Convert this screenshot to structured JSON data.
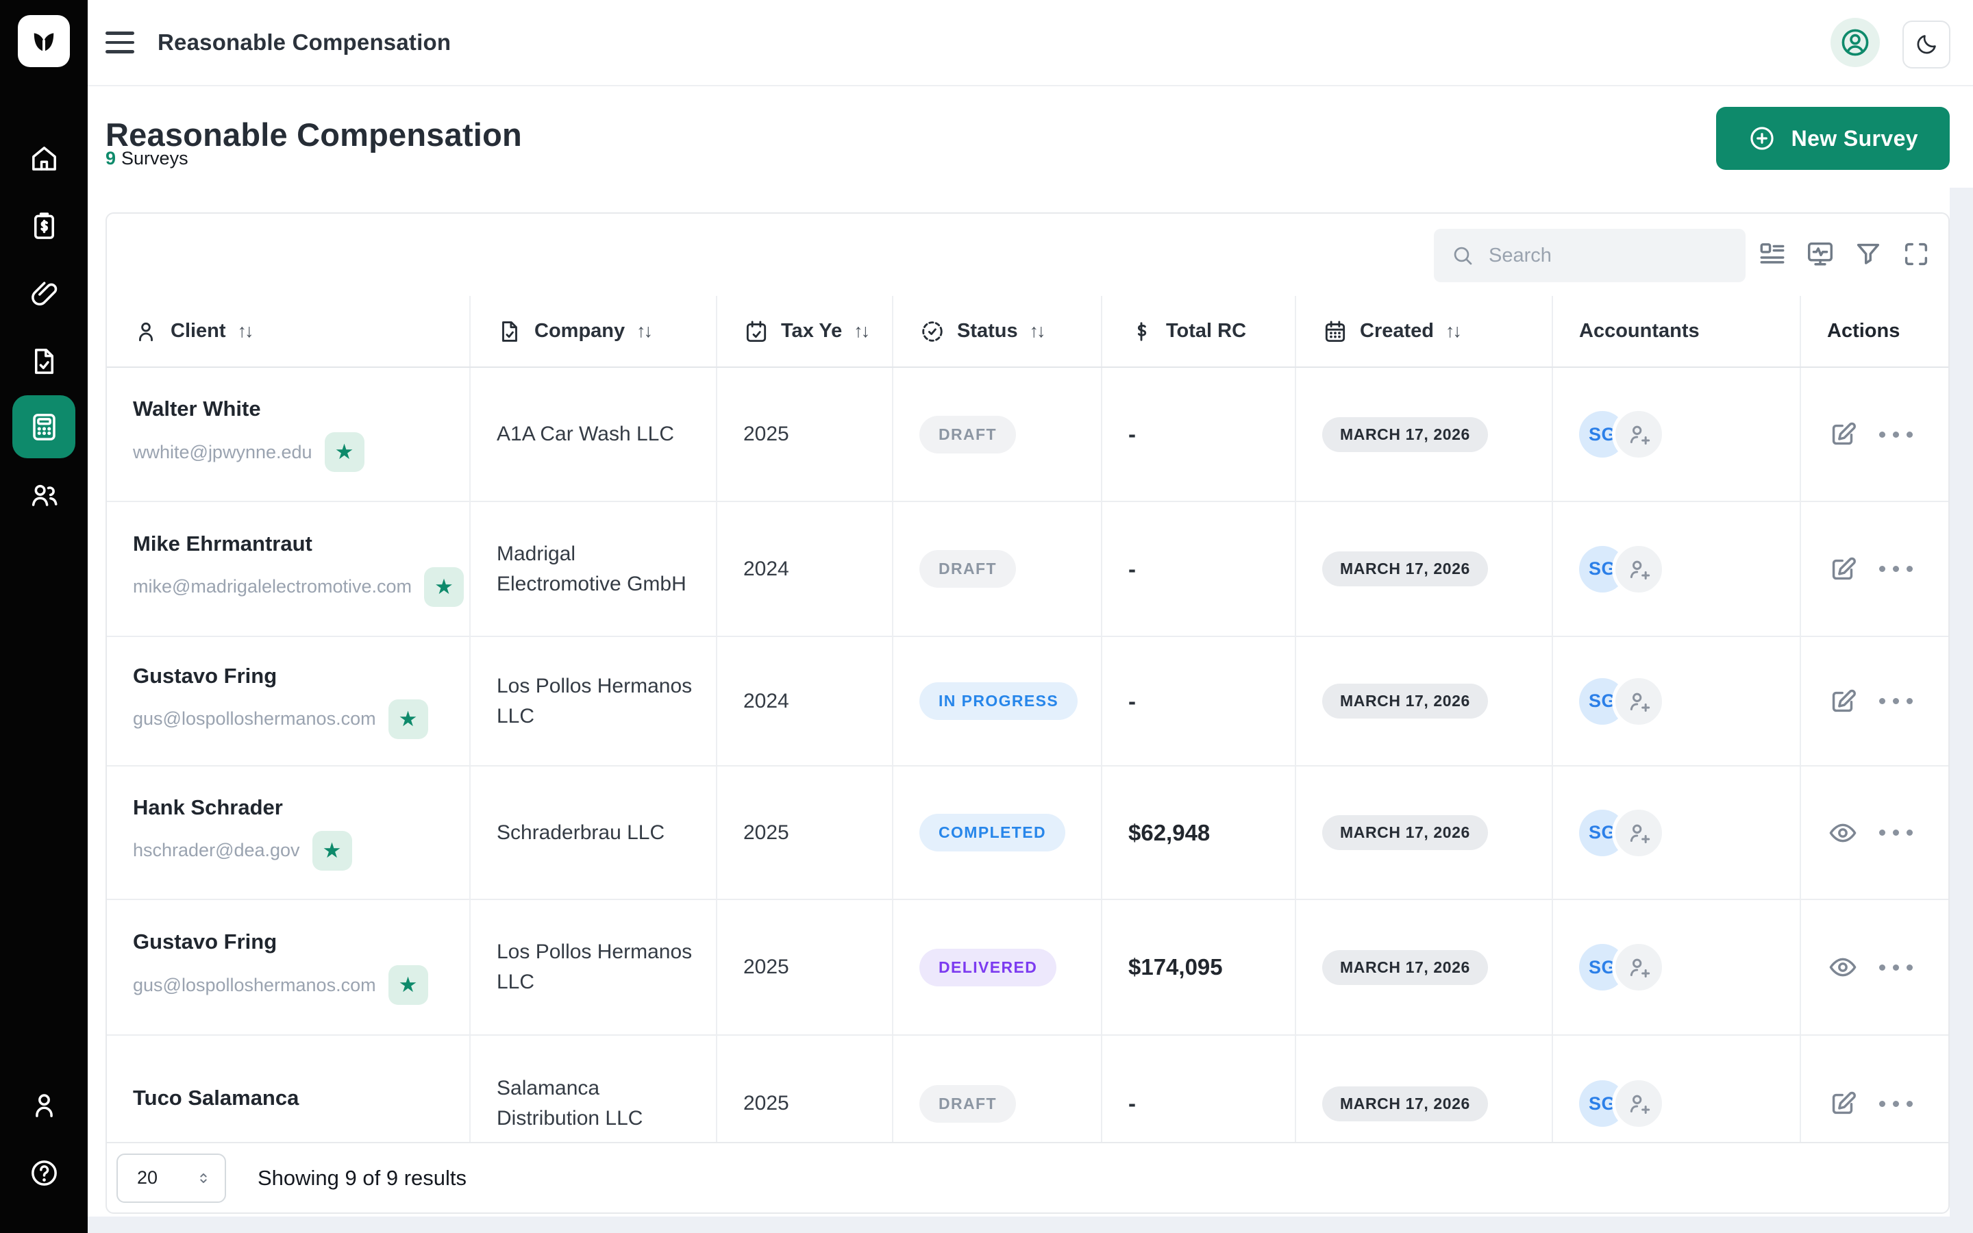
{
  "topbar": {
    "title": "Reasonable Compensation"
  },
  "sidebar": {
    "items": [
      {
        "icon": "home-icon",
        "active": false
      },
      {
        "icon": "clipboard-dollar-icon",
        "active": false
      },
      {
        "icon": "paperclip-icon",
        "active": false
      },
      {
        "icon": "file-check-icon",
        "active": false
      },
      {
        "icon": "calculator-icon",
        "active": true
      },
      {
        "icon": "users-icon",
        "active": false
      }
    ],
    "bottom_items": [
      {
        "icon": "user-icon",
        "active": false
      },
      {
        "icon": "help-circle-icon",
        "active": false
      }
    ]
  },
  "page": {
    "title": "Reasonable Compensation",
    "surveys_count": "9",
    "surveys_label": "Surveys",
    "new_survey_label": "New Survey"
  },
  "toolbar": {
    "search_placeholder": "Search",
    "icons": [
      "table-settings-icon",
      "monitor-pulse-icon",
      "filter-icon",
      "fullscreen-icon"
    ]
  },
  "table": {
    "columns": [
      {
        "label": "Client",
        "icon": "user-icon",
        "sortable": true
      },
      {
        "label": "Company",
        "icon": "file-check-icon",
        "sortable": true
      },
      {
        "label": "Tax Ye",
        "icon": "calendar-check-icon",
        "sortable": true
      },
      {
        "label": "Status",
        "icon": "status-circle-icon",
        "sortable": true
      },
      {
        "label": "Total RC",
        "icon": "dollar-icon",
        "sortable": false
      },
      {
        "label": "Created",
        "icon": "calendar-icon",
        "sortable": true
      },
      {
        "label": "Accountants",
        "icon": null,
        "sortable": false
      },
      {
        "label": "Actions",
        "icon": null,
        "sortable": false
      }
    ],
    "sort_glyph": "↑↓",
    "statuses": {
      "DRAFT": {
        "bg": "#f1f2f4",
        "fg": "#8c96a3"
      },
      "IN PROGRESS": {
        "bg": "#e4f0fc",
        "fg": "#2786ea"
      },
      "COMPLETED": {
        "bg": "#e4f0fc",
        "fg": "#2786ea"
      },
      "DELIVERED": {
        "bg": "#ede8fc",
        "fg": "#7c3bf0"
      }
    },
    "rows": [
      {
        "client": "Walter White",
        "email": "wwhite@jpwynne.edu",
        "starred": true,
        "company": "A1A Car Wash LLC",
        "tax_year": "2025",
        "status": "DRAFT",
        "total_rc": "-",
        "created": "MARCH 17, 2026",
        "accountants": [
          "SG"
        ],
        "action": "edit"
      },
      {
        "client": "Mike Ehrmantraut",
        "email": "mike@madrigalelectromotive.com",
        "starred": true,
        "company": "Madrigal Electromotive GmbH",
        "tax_year": "2024",
        "status": "DRAFT",
        "total_rc": "-",
        "created": "MARCH 17, 2026",
        "accountants": [
          "SG"
        ],
        "action": "edit"
      },
      {
        "client": "Gustavo Fring",
        "email": "gus@lospolloshermanos.com",
        "starred": true,
        "company": "Los Pollos Hermanos LLC",
        "tax_year": "2024",
        "status": "IN PROGRESS",
        "total_rc": "-",
        "created": "MARCH 17, 2026",
        "accountants": [
          "SG"
        ],
        "action": "edit"
      },
      {
        "client": "Hank Schrader",
        "email": "hschrader@dea.gov",
        "starred": true,
        "company": "Schraderbrau LLC",
        "tax_year": "2025",
        "status": "COMPLETED",
        "total_rc": "$62,948",
        "created": "MARCH 17, 2026",
        "accountants": [
          "SG"
        ],
        "action": "view"
      },
      {
        "client": "Gustavo Fring",
        "email": "gus@lospolloshermanos.com",
        "starred": true,
        "company": "Los Pollos Hermanos LLC",
        "tax_year": "2025",
        "status": "DELIVERED",
        "total_rc": "$174,095",
        "created": "MARCH 17, 2026",
        "accountants": [
          "SG"
        ],
        "action": "view"
      },
      {
        "client": "Tuco Salamanca",
        "email": null,
        "starred": false,
        "company": "Salamanca Distribution LLC",
        "tax_year": "2025",
        "status": "DRAFT",
        "total_rc": "-",
        "created": "MARCH 17, 2026",
        "accountants": [
          "SG"
        ],
        "action": "edit"
      }
    ]
  },
  "footer": {
    "page_size": "20",
    "results_summary": "Showing 9 of 9 results"
  },
  "colors": {
    "accent_green": "#0E8A6B",
    "sidebar_bg": "#050505",
    "star_badge_bg": "#DDF0E8",
    "avatar_blue_bg": "#D9EAFC",
    "avatar_blue_fg": "#2B7FE8"
  }
}
